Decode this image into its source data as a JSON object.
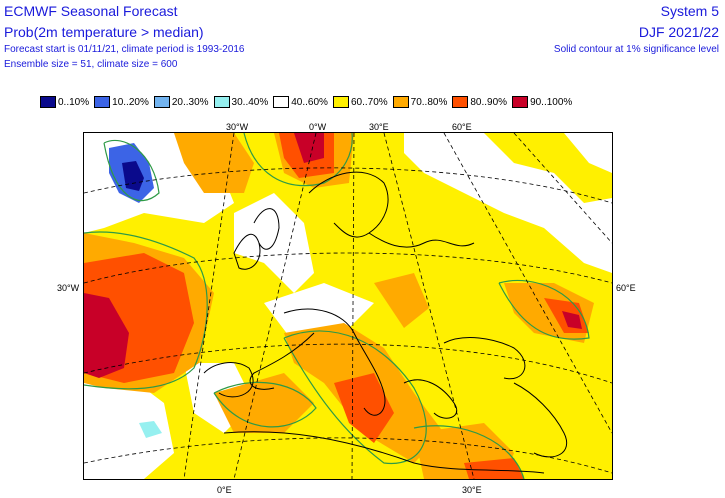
{
  "header": {
    "title": "ECMWF Seasonal Forecast",
    "subtitle": "Prob(2m temperature > median)",
    "info_line1": "Forecast start is 01/11/21, climate period is 1993-2016",
    "info_line2": "Ensemble size = 51, climate size = 600",
    "system": "System 5",
    "period": "DJF 2021/22",
    "significance_note": "Solid contour at 1% significance level"
  },
  "legend": [
    {
      "label": "0..10%",
      "color": "#0a0a8c"
    },
    {
      "label": "10..20%",
      "color": "#3c64e6"
    },
    {
      "label": "20..30%",
      "color": "#73b4f0"
    },
    {
      "label": "30..40%",
      "color": "#96f0f0"
    },
    {
      "label": "40..60%",
      "color": "#ffffff"
    },
    {
      "label": "60..70%",
      "color": "#fff000"
    },
    {
      "label": "70..80%",
      "color": "#ffaa00"
    },
    {
      "label": "80..90%",
      "color": "#ff5000"
    },
    {
      "label": "90..100%",
      "color": "#c80028"
    }
  ],
  "map_labels": {
    "top": [
      "30°W",
      "0°W",
      "30°E",
      "60°E"
    ],
    "bottom": [
      "0°E",
      "30°E"
    ],
    "left": "30°W",
    "right": "60°E"
  }
}
